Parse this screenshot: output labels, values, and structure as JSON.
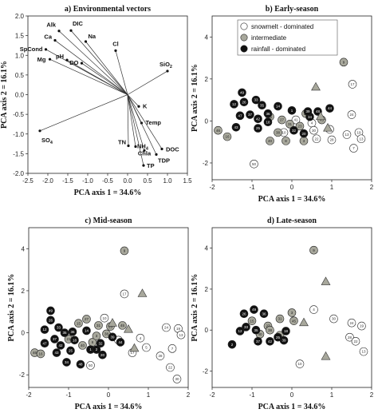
{
  "chart_data": [
    {
      "type": "biplot",
      "panel_title": "a) Environmental vectors",
      "xlabel": "PCA axis 1 = 34.6%",
      "ylabel": "PCA axis 2 = 16.1%",
      "xlim": [
        -2.5,
        1.5
      ],
      "ylim": [
        -2.0,
        2.0
      ],
      "xticks": [
        "-2.5",
        "-2.0",
        "-1.5",
        "-1.0",
        "-0.5",
        "0.0",
        "0.5",
        "1.0",
        "1.5"
      ],
      "xtick_values": [
        -2.5,
        -2.0,
        -1.5,
        -1.0,
        -0.5,
        0.0,
        0.5,
        1.0,
        1.5
      ],
      "yticks": [
        "-2.0",
        "-1.5",
        "-1.0",
        "-0.5",
        "0.0",
        "0.5",
        "1.0",
        "1.5",
        "2.0"
      ],
      "ytick_values": [
        -2.0,
        -1.5,
        -1.0,
        -0.5,
        0.0,
        0.5,
        1.0,
        1.5,
        2.0
      ],
      "vectors": [
        {
          "label": "Alk",
          "x": -1.72,
          "y": 1.62
        },
        {
          "label": "DIC",
          "x": -1.42,
          "y": 1.63
        },
        {
          "label": "Ca",
          "x": -1.82,
          "y": 1.38
        },
        {
          "label": "Na",
          "x": -1.05,
          "y": 1.35
        },
        {
          "label": "SpCond",
          "x": -2.05,
          "y": 1.15
        },
        {
          "label": "Cl",
          "x": -0.3,
          "y": 1.12
        },
        {
          "label": "Mg",
          "x": -1.95,
          "y": 0.9
        },
        {
          "label": "pH",
          "x": -1.52,
          "y": 0.88
        },
        {
          "label": "DO",
          "x": -1.15,
          "y": 0.8
        },
        {
          "label": "SiO2",
          "x": 1.0,
          "y": 0.6
        },
        {
          "label": "K",
          "x": 0.28,
          "y": -0.3
        },
        {
          "label": "Temp",
          "x": 0.35,
          "y": -0.72
        },
        {
          "label": "SO4",
          "x": -2.2,
          "y": -0.92
        },
        {
          "label": "TN",
          "x": 0.02,
          "y": -1.3
        },
        {
          "label": "NH4",
          "x": 0.2,
          "y": -1.32
        },
        {
          "label": "Chla",
          "x": 0.42,
          "y": -1.42
        },
        {
          "label": "DOC",
          "x": 0.86,
          "y": -1.38
        },
        {
          "label": "TDP",
          "x": 0.72,
          "y": -1.52
        },
        {
          "label": "TP",
          "x": 0.4,
          "y": -1.8
        }
      ]
    },
    {
      "type": "scatter",
      "panel_title": "b) Early-season",
      "xlabel": "PCA axis 1 = 34.6%",
      "ylabel": "PCA axis 2 = 16.1%",
      "xlim": [
        -2,
        2
      ],
      "ylim": [
        -2.8,
        5
      ],
      "xticks": [
        "-2",
        "-1",
        "0",
        "1",
        "2"
      ],
      "xtick_values": [
        -2,
        -1,
        0,
        1,
        2
      ],
      "yticks": [
        "-2",
        "0",
        "2",
        "4"
      ],
      "ytick_values": [
        -2,
        0,
        2,
        4
      ],
      "legend": [
        {
          "label": "snowmelt - dominated",
          "fill": "#ffffff"
        },
        {
          "label": "intermediate",
          "fill": "#a8a89c"
        },
        {
          "label": "rainfall - dominated",
          "fill": "#111111"
        }
      ],
      "series": [
        {
          "class": "snowmelt",
          "points": [
            {
              "x": 1.52,
              "y": 1.75,
              "l": "17"
            },
            {
              "x": 1.5,
              "y": 0.3,
              "l": "24"
            },
            {
              "x": 1.68,
              "y": -0.55,
              "l": "19"
            },
            {
              "x": 1.74,
              "y": -0.85,
              "l": "13"
            },
            {
              "x": 1.38,
              "y": -0.65,
              "l": "13"
            },
            {
              "x": 1.55,
              "y": -1.3,
              "l": "7"
            },
            {
              "x": 0.95,
              "y": -0.4,
              "l": "5"
            },
            {
              "x": 1.0,
              "y": -0.9,
              "l": "28"
            },
            {
              "x": 0.5,
              "y": -0.1,
              "l": "4"
            },
            {
              "x": 0.55,
              "y": -0.45,
              "l": "30"
            },
            {
              "x": 0.62,
              "y": -0.85,
              "l": "22"
            },
            {
              "x": 0.1,
              "y": 0.05,
              "l": "41"
            },
            {
              "x": -0.2,
              "y": -0.55,
              "l": "10"
            },
            {
              "x": -0.95,
              "y": -2.05,
              "l": "50"
            }
          ]
        },
        {
          "class": "intermediate",
          "points": [
            {
              "x": 1.3,
              "y": 2.8,
              "l": "9"
            },
            {
              "x": -1.85,
              "y": -0.45,
              "l": "46"
            },
            {
              "x": -1.62,
              "y": -0.75,
              "l": "16"
            },
            {
              "x": -0.55,
              "y": 0.2,
              "l": "15"
            },
            {
              "x": -0.25,
              "y": 0.05,
              "l": "27"
            },
            {
              "x": -0.05,
              "y": -0.15,
              "l": "31"
            },
            {
              "x": -0.35,
              "y": -0.55,
              "l": "38"
            },
            {
              "x": -0.55,
              "y": -0.95,
              "l": "40"
            },
            {
              "x": -0.15,
              "y": -0.95,
              "l": "8"
            },
            {
              "x": 0.2,
              "y": -0.25,
              "l": "23"
            },
            {
              "x": 0.35,
              "y": 0.35,
              "l": "21"
            },
            {
              "x": 0.75,
              "y": 0.05,
              "l": "45"
            },
            {
              "x": 0.3,
              "y": -0.95,
              "l": "3"
            }
          ]
        },
        {
          "class": "rainfall",
          "points": [
            {
              "x": -1.25,
              "y": 1.35,
              "l": "49"
            },
            {
              "x": -1.45,
              "y": 0.8,
              "l": "12"
            },
            {
              "x": -1.2,
              "y": 0.9,
              "l": "26"
            },
            {
              "x": -0.9,
              "y": 1.0,
              "l": "33"
            },
            {
              "x": -0.75,
              "y": 0.75,
              "l": "35"
            },
            {
              "x": -1.3,
              "y": 0.25,
              "l": "47"
            },
            {
              "x": -1.05,
              "y": 0.3,
              "l": "37"
            },
            {
              "x": -0.85,
              "y": 0.1,
              "l": "42"
            },
            {
              "x": -0.6,
              "y": 0.35,
              "l": "36"
            },
            {
              "x": -1.4,
              "y": -0.3,
              "l": "43"
            },
            {
              "x": -0.85,
              "y": -0.35,
              "l": "25"
            },
            {
              "x": -0.6,
              "y": -0.05,
              "l": "18"
            },
            {
              "x": -0.35,
              "y": 0.7,
              "l": "14"
            },
            {
              "x": 0.0,
              "y": 0.5,
              "l": "1"
            },
            {
              "x": 0.05,
              "y": -0.45,
              "l": "32"
            },
            {
              "x": 0.3,
              "y": -0.6,
              "l": "20"
            },
            {
              "x": 0.95,
              "y": 0.6,
              "l": "44"
            },
            {
              "x": 0.45,
              "y": 0.2,
              "l": "34"
            },
            {
              "x": 0.65,
              "y": 0.45,
              "l": "48"
            },
            {
              "x": 0.4,
              "y": 0.45,
              "l": "39"
            }
          ]
        },
        {
          "class": "triangle",
          "points": [
            {
              "x": 0.6,
              "y": 1.6
            },
            {
              "x": 0.72,
              "y": 0.2
            },
            {
              "x": 0.9,
              "y": -0.35
            }
          ]
        }
      ]
    },
    {
      "type": "scatter",
      "panel_title": "c) Mid-season",
      "xlabel": "PCA axis 1 = 34.6%",
      "ylabel": "PCA axis 2 = 16.1%",
      "xlim": [
        -2,
        2
      ],
      "ylim": [
        -2.6,
        5
      ],
      "xticks": [
        "-2",
        "-1",
        "0",
        "1",
        "2"
      ],
      "xtick_values": [
        -2,
        -1,
        0,
        1,
        2
      ],
      "yticks": [
        "-2",
        "0",
        "2",
        "4"
      ],
      "ytick_values": [
        -2,
        0,
        2,
        4
      ],
      "series": [
        {
          "class": "snowmelt",
          "points": [
            {
              "x": 0.4,
              "y": 1.85,
              "l": "17"
            },
            {
              "x": 1.45,
              "y": 0.25,
              "l": "24"
            },
            {
              "x": 1.75,
              "y": 0.2,
              "l": "19"
            },
            {
              "x": 1.82,
              "y": -0.1,
              "l": "13"
            },
            {
              "x": 1.6,
              "y": -0.75,
              "l": "7"
            },
            {
              "x": 1.3,
              "y": -1.1,
              "l": "28"
            },
            {
              "x": 1.55,
              "y": -1.65,
              "l": "22"
            },
            {
              "x": 1.72,
              "y": -2.2,
              "l": "30"
            },
            {
              "x": 0.95,
              "y": -0.7,
              "l": "5"
            },
            {
              "x": 0.8,
              "y": -0.25,
              "l": "4"
            },
            {
              "x": 0.6,
              "y": -0.95,
              "l": "17"
            },
            {
              "x": 0.25,
              "y": -0.35,
              "l": "41"
            },
            {
              "x": -0.45,
              "y": -1.55,
              "l": "50"
            },
            {
              "x": -0.1,
              "y": 0.7,
              "l": "10"
            }
          ]
        },
        {
          "class": "intermediate",
          "points": [
            {
              "x": 0.4,
              "y": 3.9,
              "l": "9"
            },
            {
              "x": -1.85,
              "y": -0.95,
              "l": "46"
            },
            {
              "x": -1.7,
              "y": -1.0,
              "l": "16"
            },
            {
              "x": -0.75,
              "y": 0.45,
              "l": "15"
            },
            {
              "x": -0.55,
              "y": 0.65,
              "l": "27"
            },
            {
              "x": -0.25,
              "y": 0.35,
              "l": "31"
            },
            {
              "x": -0.05,
              "y": -0.05,
              "l": "38"
            },
            {
              "x": -0.65,
              "y": -0.6,
              "l": "40"
            },
            {
              "x": -0.4,
              "y": -0.45,
              "l": "8"
            },
            {
              "x": 0.05,
              "y": 0.3,
              "l": "23"
            },
            {
              "x": -1.0,
              "y": -0.3,
              "l": "21"
            },
            {
              "x": -0.3,
              "y": -0.15,
              "l": "3"
            },
            {
              "x": 0.35,
              "y": 0.35,
              "l": "45"
            }
          ]
        },
        {
          "class": "rainfall",
          "points": [
            {
              "x": -1.45,
              "y": 1.05,
              "l": "49"
            },
            {
              "x": -1.6,
              "y": 0.15,
              "l": "12"
            },
            {
              "x": -1.45,
              "y": 0.6,
              "l": "26"
            },
            {
              "x": -1.25,
              "y": 0.25,
              "l": "33"
            },
            {
              "x": -1.1,
              "y": 0.0,
              "l": "35"
            },
            {
              "x": -1.6,
              "y": -0.5,
              "l": "47"
            },
            {
              "x": -1.35,
              "y": -0.3,
              "l": "37"
            },
            {
              "x": -1.2,
              "y": -0.6,
              "l": "42"
            },
            {
              "x": -0.9,
              "y": 0.05,
              "l": "36"
            },
            {
              "x": -1.3,
              "y": -0.95,
              "l": "43"
            },
            {
              "x": -0.95,
              "y": -0.85,
              "l": "25"
            },
            {
              "x": -0.85,
              "y": -0.35,
              "l": "18"
            },
            {
              "x": -0.55,
              "y": 0.1,
              "l": "14"
            },
            {
              "x": -0.45,
              "y": -0.8,
              "l": "1"
            },
            {
              "x": -0.2,
              "y": -0.5,
              "l": "32"
            },
            {
              "x": -0.15,
              "y": -1.05,
              "l": "20"
            },
            {
              "x": 0.3,
              "y": -0.45,
              "l": "44"
            },
            {
              "x": -1.05,
              "y": -1.4,
              "l": "34"
            },
            {
              "x": -0.7,
              "y": -1.5,
              "l": "48"
            },
            {
              "x": 0.1,
              "y": -0.2,
              "l": "39"
            },
            {
              "x": -0.3,
              "y": -0.8,
              "l": "2"
            }
          ]
        },
        {
          "class": "triangle",
          "points": [
            {
              "x": 0.85,
              "y": 1.85
            },
            {
              "x": 0.1,
              "y": 0.45
            },
            {
              "x": 0.5,
              "y": 0.15
            },
            {
              "x": 0.65,
              "y": -0.75
            }
          ]
        }
      ]
    },
    {
      "type": "scatter",
      "panel_title": "d) Late-season",
      "xlabel": "PCA axis 1 = 34.6%",
      "ylabel": "PCA axis 2 = 16.1%",
      "xlim": [
        -2,
        2
      ],
      "ylim": [
        -2.8,
        5
      ],
      "xticks": [
        "-2",
        "-1",
        "0",
        "1",
        "2"
      ],
      "xtick_values": [
        -2,
        -1,
        0,
        1,
        2
      ],
      "yticks": [
        "-2",
        "0",
        "2",
        "4"
      ],
      "ytick_values": [
        -2,
        0,
        2,
        4
      ],
      "series": [
        {
          "class": "snowmelt",
          "points": [
            {
              "x": 0.55,
              "y": 1.0,
              "l": "4"
            },
            {
              "x": 1.05,
              "y": 0.55,
              "l": "30"
            },
            {
              "x": 1.5,
              "y": 0.35,
              "l": "24"
            },
            {
              "x": 1.75,
              "y": 0.2,
              "l": "19"
            },
            {
              "x": 1.45,
              "y": -0.35,
              "l": "28"
            },
            {
              "x": 1.6,
              "y": -0.55,
              "l": "22"
            },
            {
              "x": 1.8,
              "y": -1.05,
              "l": "13"
            },
            {
              "x": 0.2,
              "y": -1.65,
              "l": "10"
            }
          ]
        },
        {
          "class": "intermediate",
          "points": [
            {
              "x": 0.55,
              "y": 3.9,
              "l": "9"
            },
            {
              "x": -1.0,
              "y": 0.45,
              "l": "15"
            },
            {
              "x": -0.6,
              "y": 0.2,
              "l": "27"
            },
            {
              "x": -0.3,
              "y": 0.55,
              "l": "31"
            },
            {
              "x": -0.55,
              "y": 0.0,
              "l": "38"
            },
            {
              "x": -0.8,
              "y": -0.2,
              "l": "40"
            },
            {
              "x": 0.0,
              "y": 0.85,
              "l": "3"
            },
            {
              "x": -0.3,
              "y": -0.25,
              "l": "21"
            },
            {
              "x": 0.05,
              "y": 0.45,
              "l": "45"
            }
          ]
        },
        {
          "class": "rainfall",
          "points": [
            {
              "x": -1.2,
              "y": 0.8,
              "l": "26"
            },
            {
              "x": -0.95,
              "y": 1.0,
              "l": "49"
            },
            {
              "x": -0.7,
              "y": 0.8,
              "l": "36"
            },
            {
              "x": -1.15,
              "y": 0.15,
              "l": "33"
            },
            {
              "x": -0.9,
              "y": 0.0,
              "l": "35"
            },
            {
              "x": -1.3,
              "y": -0.05,
              "l": "12"
            },
            {
              "x": -0.85,
              "y": -0.55,
              "l": "37"
            },
            {
              "x": -0.55,
              "y": -0.55,
              "l": "42"
            },
            {
              "x": -0.35,
              "y": -0.35,
              "l": "25"
            },
            {
              "x": -0.15,
              "y": -0.05,
              "l": "18"
            },
            {
              "x": -0.2,
              "y": -0.5,
              "l": "39"
            },
            {
              "x": -1.5,
              "y": -0.7,
              "l": "2"
            }
          ]
        },
        {
          "class": "triangle",
          "points": [
            {
              "x": 0.85,
              "y": 2.35
            },
            {
              "x": 0.3,
              "y": 0.35
            },
            {
              "x": 0.85,
              "y": -1.3
            }
          ]
        }
      ]
    }
  ]
}
